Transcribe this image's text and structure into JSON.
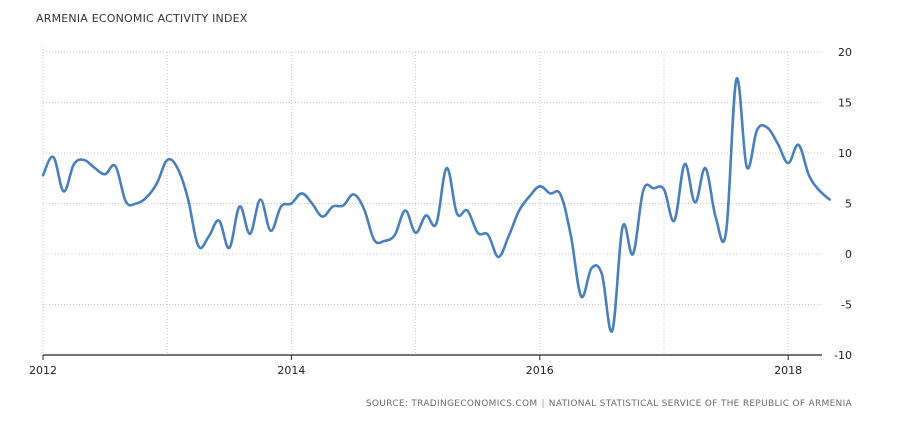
{
  "chart_data": {
    "type": "line",
    "title": "ARMENIA ECONOMIC ACTIVITY INDEX",
    "xlabel": "",
    "ylabel": "",
    "x_ticks": [
      "2012",
      "2014",
      "2016",
      "2018"
    ],
    "y_ticks": [
      "20",
      "15",
      "10",
      "5",
      "0",
      "-5",
      "-10"
    ],
    "ylim": [
      -10,
      20
    ],
    "xlim": [
      "2012-01",
      "2018-12"
    ],
    "grid": true,
    "line_color": "#4a80b9",
    "series": [
      {
        "name": "",
        "x": [
          "2012-01",
          "2012-02",
          "2012-03",
          "2012-04",
          "2012-05",
          "2012-06",
          "2012-07",
          "2012-08",
          "2012-09",
          "2012-10",
          "2012-11",
          "2012-12",
          "2013-01",
          "2013-02",
          "2013-03",
          "2013-04",
          "2013-05",
          "2013-06",
          "2013-07",
          "2013-08",
          "2013-09",
          "2013-10",
          "2013-11",
          "2013-12",
          "2014-01",
          "2014-02",
          "2014-03",
          "2014-04",
          "2014-05",
          "2014-06",
          "2014-07",
          "2014-08",
          "2014-09",
          "2014-10",
          "2014-11",
          "2014-12",
          "2015-01",
          "2015-02",
          "2015-03",
          "2015-04",
          "2015-05",
          "2015-06",
          "2015-07",
          "2015-08",
          "2015-09",
          "2015-10",
          "2015-11",
          "2015-12",
          "2016-01",
          "2016-02",
          "2016-03",
          "2016-04",
          "2016-05",
          "2016-06",
          "2016-07",
          "2016-08",
          "2016-09",
          "2016-10",
          "2016-11",
          "2016-12",
          "2017-01",
          "2017-02",
          "2017-03",
          "2017-04",
          "2017-05",
          "2017-06",
          "2017-07",
          "2017-08",
          "2017-09",
          "2017-10",
          "2017-11",
          "2017-12",
          "2018-01",
          "2018-02",
          "2018-03",
          "2018-04",
          "2018-05"
        ],
        "values": [
          7.8,
          9.6,
          6.2,
          8.9,
          9.3,
          8.5,
          7.9,
          8.7,
          5.2,
          5.0,
          5.6,
          7.0,
          9.3,
          8.5,
          5.5,
          0.8,
          1.7,
          3.3,
          0.6,
          4.7,
          2.0,
          5.4,
          2.3,
          4.7,
          5.0,
          6.0,
          5.0,
          3.7,
          4.7,
          4.8,
          5.9,
          4.5,
          1.4,
          1.3,
          1.9,
          4.3,
          2.1,
          3.8,
          3.0,
          8.5,
          4.0,
          4.3,
          2.1,
          1.9,
          -0.3,
          1.8,
          4.3,
          5.7,
          6.7,
          6.0,
          5.9,
          1.8,
          -4.2,
          -1.4,
          -2.0,
          -7.6,
          2.7,
          0.0,
          6.3,
          6.5,
          6.4,
          3.3,
          8.9,
          5.1,
          8.5,
          3.6,
          2.2,
          17.3,
          8.6,
          12.3,
          12.5,
          10.9,
          9.0,
          10.8,
          7.8,
          6.3,
          5.4
        ]
      }
    ]
  },
  "footer": {
    "source_label": "SOURCE: TRADINGECONOMICS.COM",
    "separator": "|",
    "source_org": "NATIONAL STATISTICAL SERVICE OF THE REPUBLIC OF ARMENIA"
  }
}
